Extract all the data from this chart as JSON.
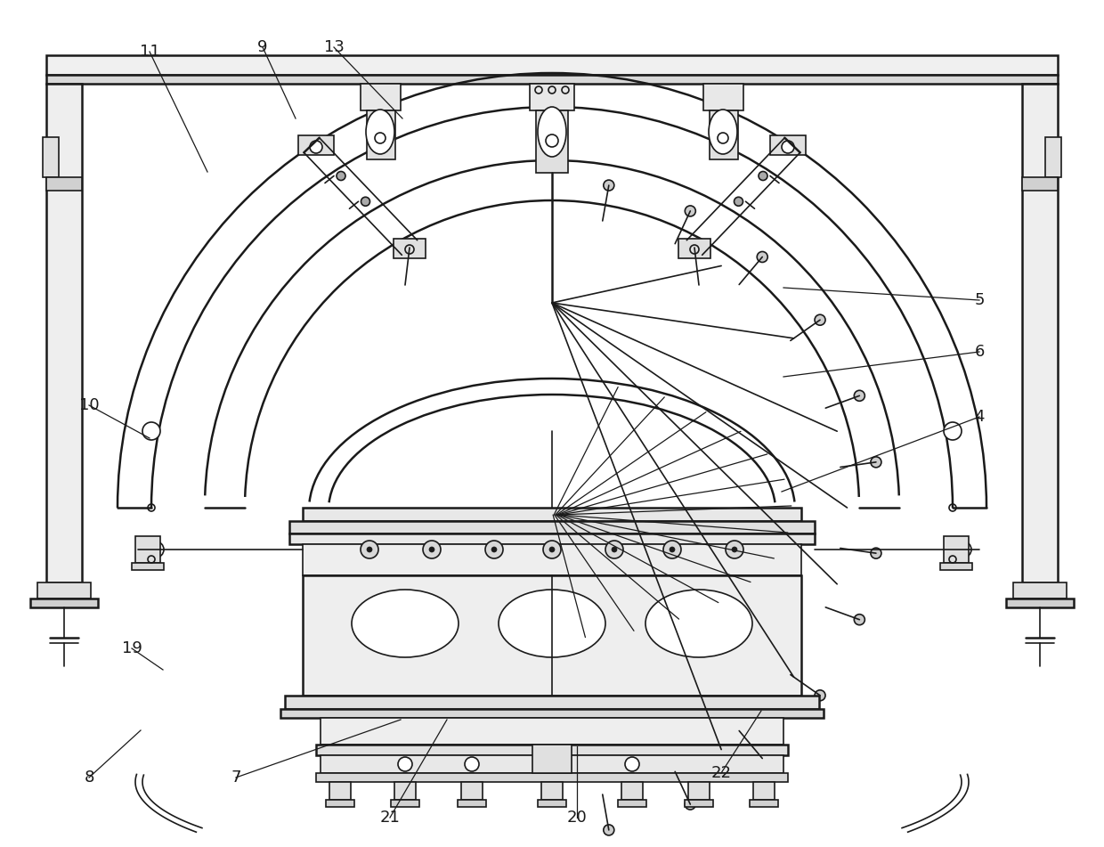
{
  "bg": "#ffffff",
  "lc": "#1a1a1a",
  "lw": 1.2,
  "lw2": 1.8,
  "lw3": 2.5,
  "labels": [
    [
      "11",
      168,
      58,
      233,
      193
    ],
    [
      "9",
      295,
      53,
      332,
      133
    ],
    [
      "13",
      375,
      53,
      452,
      133
    ],
    [
      "10",
      100,
      455,
      168,
      492
    ],
    [
      "5",
      1100,
      337,
      880,
      323
    ],
    [
      "6",
      1100,
      395,
      880,
      423
    ],
    [
      "4",
      1100,
      468,
      878,
      552
    ],
    [
      "7",
      265,
      873,
      450,
      808
    ],
    [
      "8",
      100,
      873,
      158,
      820
    ],
    [
      "19",
      148,
      728,
      183,
      752
    ],
    [
      "20",
      648,
      918,
      648,
      838
    ],
    [
      "21",
      438,
      918,
      502,
      808
    ],
    [
      "22",
      810,
      868,
      855,
      798
    ]
  ]
}
